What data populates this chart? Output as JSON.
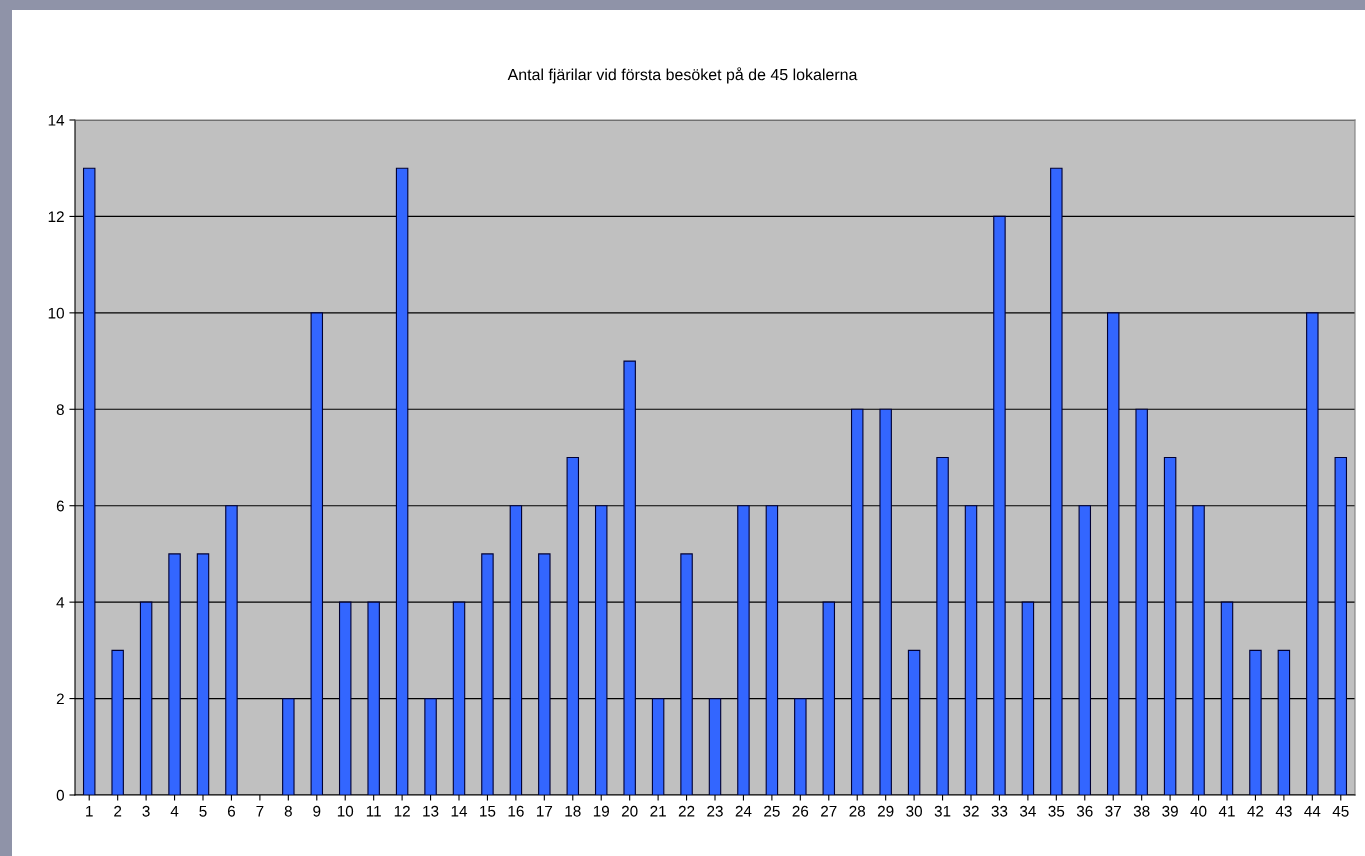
{
  "chart_data": {
    "type": "bar",
    "title": "Antal fjärilar vid första besöket på de 45 lokalerna",
    "categories": [
      "1",
      "2",
      "3",
      "4",
      "5",
      "6",
      "7",
      "8",
      "9",
      "10",
      "11",
      "12",
      "13",
      "14",
      "15",
      "16",
      "17",
      "18",
      "19",
      "20",
      "21",
      "22",
      "23",
      "24",
      "25",
      "26",
      "27",
      "28",
      "29",
      "30",
      "31",
      "32",
      "33",
      "34",
      "35",
      "36",
      "37",
      "38",
      "39",
      "40",
      "41",
      "42",
      "43",
      "44",
      "45"
    ],
    "values": [
      13,
      3,
      4,
      5,
      5,
      6,
      0,
      2,
      10,
      4,
      4,
      13,
      2,
      4,
      5,
      6,
      5,
      7,
      6,
      9,
      2,
      5,
      2,
      6,
      6,
      2,
      4,
      8,
      8,
      3,
      7,
      6,
      12,
      4,
      13,
      6,
      10,
      8,
      7,
      6,
      4,
      3,
      3,
      10,
      7
    ],
    "color": "#3366ff",
    "ylim": [
      0,
      14
    ],
    "yticks": [
      0,
      2,
      4,
      6,
      8,
      10,
      12,
      14
    ],
    "grid": "y",
    "legend": false
  }
}
